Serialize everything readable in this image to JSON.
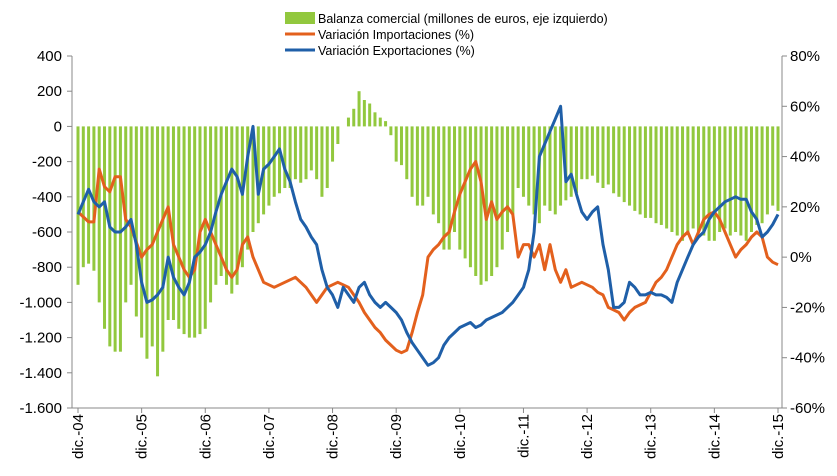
{
  "chart_data": {
    "type": "bar",
    "categories": [
      "dic.-04",
      null,
      null,
      null,
      null,
      null,
      null,
      null,
      null,
      null,
      null,
      null,
      "dic.-05",
      null,
      null,
      null,
      null,
      null,
      null,
      null,
      null,
      null,
      null,
      null,
      "dic.-06",
      null,
      null,
      null,
      null,
      null,
      null,
      null,
      null,
      null,
      null,
      null,
      "dic.-07",
      null,
      null,
      null,
      null,
      null,
      null,
      null,
      null,
      null,
      null,
      null,
      "dic.-08",
      null,
      null,
      null,
      null,
      null,
      null,
      null,
      null,
      null,
      null,
      null,
      "dic.-09",
      null,
      null,
      null,
      null,
      null,
      null,
      null,
      null,
      null,
      null,
      null,
      "dic.-10",
      null,
      null,
      null,
      null,
      null,
      null,
      null,
      null,
      null,
      null,
      null,
      "dic.-11",
      null,
      null,
      null,
      null,
      null,
      null,
      null,
      null,
      null,
      null,
      null,
      "dic.-12",
      null,
      null,
      null,
      null,
      null,
      null,
      null,
      null,
      null,
      null,
      null,
      "dic.-13",
      null,
      null,
      null,
      null,
      null,
      null,
      null,
      null,
      null,
      null,
      null,
      "dic.-14",
      null,
      null,
      null,
      null,
      null,
      null,
      null,
      null,
      null,
      null,
      null,
      "dic.-15"
    ],
    "series": [
      {
        "name": "Balanza comercial (millones de euros, eje izquierdo)",
        "type": "bar",
        "color": "#92c83e",
        "values": [
          -900,
          -800,
          -780,
          -820,
          -1000,
          -1150,
          -1250,
          -1280,
          -1280,
          -1000,
          -900,
          -1080,
          -1200,
          -1320,
          -1250,
          -1420,
          -1280,
          -1100,
          -1100,
          -1150,
          -1180,
          -1200,
          -1200,
          -1180,
          -1150,
          -1000,
          -900,
          -850,
          -900,
          -950,
          -900,
          -800,
          -700,
          -600,
          -550,
          -500,
          -450,
          -400,
          -380,
          -350,
          -350,
          -300,
          -320,
          -300,
          -250,
          -300,
          -400,
          -350,
          -200,
          -100,
          0,
          50,
          100,
          200,
          150,
          130,
          80,
          50,
          30,
          -50,
          -200,
          -220,
          -300,
          -400,
          -450,
          -450,
          -400,
          -500,
          -550,
          -700,
          -700,
          -600,
          -700,
          -750,
          -800,
          -850,
          -900,
          -880,
          -850,
          -800,
          -700,
          -600,
          -500,
          -350,
          -400,
          -450,
          -500,
          -550,
          -450,
          -480,
          -500,
          -450,
          -420,
          -400,
          -380,
          -300,
          -300,
          -280,
          -320,
          -350,
          -330,
          -380,
          -400,
          -430,
          -450,
          -480,
          -500,
          -520,
          -520,
          -550,
          -560,
          -580,
          -600,
          -620,
          -650,
          -600,
          -580,
          -600,
          -620,
          -650,
          -650,
          -600,
          -580,
          -620,
          -600,
          -620,
          -650,
          -600,
          -560,
          -550,
          -500,
          -450,
          -480
        ]
      },
      {
        "name": "Variación Importaciones (%)",
        "type": "line",
        "axis": "y2",
        "color": "#e3601d",
        "values": [
          18,
          16,
          14,
          14,
          35,
          28,
          26,
          32,
          32,
          15,
          12,
          6,
          0,
          3,
          5,
          10,
          15,
          20,
          5,
          0,
          -5,
          -8,
          -5,
          10,
          15,
          10,
          5,
          0,
          -5,
          -8,
          -5,
          5,
          8,
          0,
          -5,
          -10,
          -11,
          -12,
          -11,
          -10,
          -9,
          -8,
          -10,
          -12,
          -15,
          -18,
          -15,
          -12,
          -11,
          -10,
          -11,
          -12,
          -15,
          -18,
          -22,
          -25,
          -28,
          -30,
          -33,
          -35,
          -37,
          -38,
          -37,
          -30,
          -22,
          -15,
          0,
          3,
          5,
          8,
          10,
          18,
          25,
          30,
          35,
          38,
          30,
          15,
          22,
          15,
          18,
          20,
          17,
          0,
          5,
          5,
          0,
          5,
          -5,
          5,
          -5,
          -10,
          -5,
          -12,
          -11,
          -10,
          -11,
          -12,
          -14,
          -15,
          -20,
          -21,
          -22,
          -25,
          -22,
          -20,
          -19,
          -18,
          -14,
          -10,
          -8,
          -5,
          0,
          5,
          8,
          10,
          5,
          10,
          15,
          17,
          18,
          15,
          10,
          5,
          0,
          3,
          5,
          8,
          10,
          8,
          0,
          -2,
          -3
        ]
      },
      {
        "name": "Variación Exportaciones (%)",
        "type": "line",
        "axis": "y2",
        "color": "#1f5fa8",
        "values": [
          17,
          22,
          27,
          22,
          20,
          22,
          12,
          10,
          10,
          12,
          15,
          5,
          -10,
          -18,
          -17,
          -15,
          -12,
          0,
          -8,
          -12,
          -15,
          -10,
          0,
          2,
          5,
          10,
          18,
          25,
          30,
          35,
          32,
          25,
          40,
          52,
          25,
          35,
          37,
          40,
          43,
          35,
          30,
          22,
          15,
          12,
          8,
          5,
          -5,
          -12,
          -15,
          -20,
          -12,
          -15,
          -18,
          -12,
          -10,
          -15,
          -18,
          -20,
          -18,
          -20,
          -22,
          -25,
          -30,
          -34,
          -37,
          -40,
          -43,
          -42,
          -40,
          -35,
          -32,
          -30,
          -28,
          -27,
          -26,
          -28,
          -27,
          -25,
          -24,
          -23,
          -22,
          -20,
          -18,
          -15,
          -12,
          -5,
          10,
          40,
          45,
          50,
          55,
          60,
          30,
          33,
          25,
          18,
          15,
          18,
          20,
          5,
          -5,
          -20,
          -20,
          -18,
          -10,
          -12,
          -15,
          -15,
          -14,
          -15,
          -15,
          -16,
          -18,
          -10,
          -5,
          0,
          5,
          8,
          10,
          15,
          18,
          20,
          22,
          23,
          24,
          23,
          23,
          18,
          15,
          8,
          10,
          13,
          17
        ]
      }
    ],
    "ylim": [
      -1600,
      400
    ],
    "yticks": [
      {
        "value": -1600,
        "label": "-1.600"
      },
      {
        "value": -1400,
        "label": "-1.400"
      },
      {
        "value": -1200,
        "label": "-1.200"
      },
      {
        "value": -1000,
        "label": "-1.000"
      },
      -800,
      -600,
      -400,
      -200,
      0,
      200,
      400
    ],
    "y2lim": [
      -60,
      80
    ],
    "y2ticks": [
      {
        "value": -60,
        "label": "-60%"
      },
      {
        "value": -40,
        "label": "-40%"
      },
      {
        "value": -20,
        "label": "-20%"
      },
      {
        "value": 0,
        "label": "0%"
      },
      {
        "value": 20,
        "label": "20%"
      },
      {
        "value": 40,
        "label": "40%"
      },
      {
        "value": 60,
        "label": "60%"
      },
      {
        "value": 80,
        "label": "80%"
      }
    ],
    "legend": "top"
  }
}
